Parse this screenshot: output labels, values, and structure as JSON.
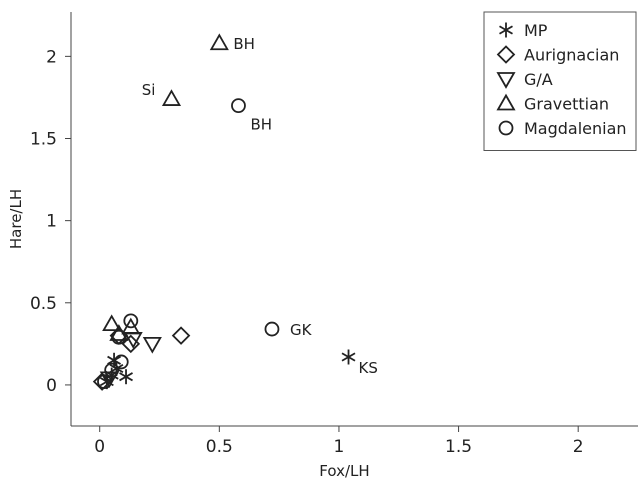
{
  "chart_data": {
    "type": "scatter",
    "xlabel": "Fox/LH",
    "ylabel": "Hare/LH",
    "xlim": [
      -0.12,
      2.25
    ],
    "ylim": [
      -0.25,
      2.27
    ],
    "xticks": [
      0,
      0.5,
      1,
      1.5,
      2
    ],
    "yticks": [
      0,
      0.5,
      1,
      1.5,
      2
    ],
    "xtick_labels": [
      "0",
      "0.5",
      "1",
      "1.5",
      "2"
    ],
    "ytick_labels": [
      "0",
      "0.5",
      "1",
      "1.5",
      "2"
    ],
    "grid": false,
    "legend": "top-right",
    "series": [
      {
        "name": "MP",
        "marker": "asterisk",
        "points": [
          {
            "x": 1.04,
            "y": 0.17,
            "label": "KS"
          },
          {
            "x": 0.06,
            "y": 0.15
          },
          {
            "x": 0.11,
            "y": 0.05
          },
          {
            "x": 0.05,
            "y": 0.06
          },
          {
            "x": 0.03,
            "y": 0.02
          },
          {
            "x": 0.07,
            "y": 0.1
          }
        ]
      },
      {
        "name": "Aurignacian",
        "marker": "diamond",
        "points": [
          {
            "x": 0.34,
            "y": 0.3
          },
          {
            "x": 0.13,
            "y": 0.25
          },
          {
            "x": 0.08,
            "y": 0.3
          },
          {
            "x": 0.01,
            "y": 0.02
          }
        ]
      },
      {
        "name": "G/A",
        "marker": "triangle-down",
        "points": [
          {
            "x": 0.22,
            "y": 0.25
          },
          {
            "x": 0.14,
            "y": 0.28
          },
          {
            "x": 0.04,
            "y": 0.04
          }
        ]
      },
      {
        "name": "Gravettian",
        "marker": "triangle-up",
        "points": [
          {
            "x": 0.5,
            "y": 2.08,
            "label": "BH"
          },
          {
            "x": 0.3,
            "y": 1.74,
            "label": "Si"
          },
          {
            "x": 0.05,
            "y": 0.37
          },
          {
            "x": 0.13,
            "y": 0.35
          },
          {
            "x": 0.08,
            "y": 0.31
          }
        ]
      },
      {
        "name": "Magdalenian",
        "marker": "circle",
        "points": [
          {
            "x": 0.58,
            "y": 1.7,
            "label": "BH"
          },
          {
            "x": 0.72,
            "y": 0.34,
            "label": "GK"
          },
          {
            "x": 0.13,
            "y": 0.39
          },
          {
            "x": 0.08,
            "y": 0.29
          },
          {
            "x": 0.09,
            "y": 0.14
          },
          {
            "x": 0.05,
            "y": 0.09
          },
          {
            "x": 0.02,
            "y": 0.02
          }
        ]
      }
    ]
  }
}
